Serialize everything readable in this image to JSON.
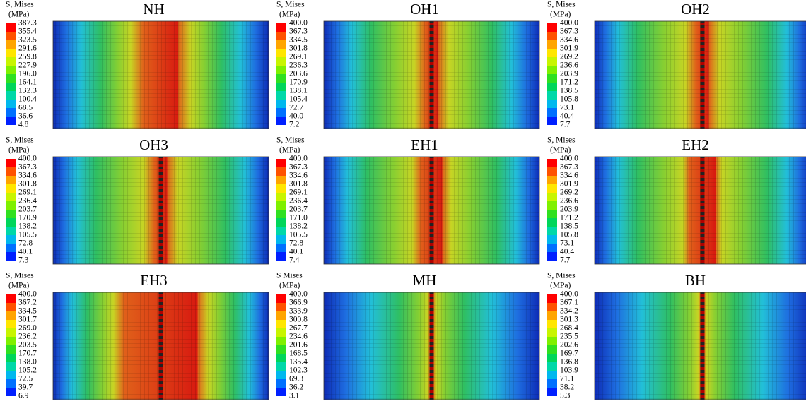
{
  "panels": [
    {
      "title": "NH",
      "legend_title": "S, Mises",
      "legend_unit": "(MPa)",
      "legend_values": [
        "387.3",
        "355.4",
        "323.5",
        "291.6",
        "259.8",
        "227.9",
        "196.0",
        "164.1",
        "132.3",
        "100.4",
        "68.5",
        "36.6",
        "4.8"
      ]
    },
    {
      "title": "OH1",
      "legend_title": "S, Mises",
      "legend_unit": "(MPa)",
      "legend_values": [
        "400.0",
        "367.3",
        "334.5",
        "301.8",
        "269.1",
        "236.3",
        "203.6",
        "170.9",
        "138.1",
        "105.4",
        "72.7",
        "40.0",
        "7.2"
      ]
    },
    {
      "title": "OH2",
      "legend_title": "S, Mises",
      "legend_unit": "(MPa)",
      "legend_values": [
        "400.0",
        "367.3",
        "334.6",
        "301.9",
        "269.2",
        "236.6",
        "203.9",
        "171.2",
        "138.5",
        "105.8",
        "73.1",
        "40.4",
        "7.7"
      ]
    },
    {
      "title": "OH3",
      "legend_title": "S, Mises",
      "legend_unit": "(MPa)",
      "legend_values": [
        "400.0",
        "367.3",
        "334.6",
        "301.8",
        "269.1",
        "236.4",
        "203.7",
        "170.9",
        "138.2",
        "105.5",
        "72.8",
        "40.1",
        "7.3"
      ]
    },
    {
      "title": "EH1",
      "legend_title": "S, Mises",
      "legend_unit": "(MPa)",
      "legend_values": [
        "400.0",
        "367.3",
        "334.6",
        "301.8",
        "269.1",
        "236.4",
        "203.7",
        "171.0",
        "138.2",
        "105.5",
        "72.8",
        "40.1",
        "7.4"
      ]
    },
    {
      "title": "EH2",
      "legend_title": "S, Mises",
      "legend_unit": "(MPa)",
      "legend_values": [
        "400.0",
        "367.3",
        "334.6",
        "301.9",
        "269.2",
        "236.6",
        "203.9",
        "171.2",
        "138.5",
        "105.8",
        "73.1",
        "40.4",
        "7.7"
      ]
    },
    {
      "title": "EH3",
      "legend_title": "S, Mises",
      "legend_unit": "(MPa)",
      "legend_values": [
        "400.0",
        "367.2",
        "334.5",
        "301.7",
        "269.0",
        "236.2",
        "203.5",
        "170.7",
        "138.0",
        "105.2",
        "72.5",
        "39.7",
        "6.9"
      ]
    },
    {
      "title": "MH",
      "legend_title": "S Mises",
      "legend_unit": "(MPa)",
      "legend_values": [
        "400.0",
        "366.9",
        "333.9",
        "300.8",
        "267.7",
        "234.6",
        "201.6",
        "168.5",
        "135.4",
        "102.3",
        "69.3",
        "36.2",
        "3.1"
      ]
    },
    {
      "title": "BH",
      "legend_title": "S, Mises",
      "legend_unit": "(MPa)",
      "legend_values": [
        "400.0",
        "367.1",
        "334.2",
        "301.3",
        "268.4",
        "235.5",
        "202.6",
        "169.7",
        "136.8",
        "103.9",
        "71.1",
        "38.2",
        "5.3"
      ]
    }
  ]
}
